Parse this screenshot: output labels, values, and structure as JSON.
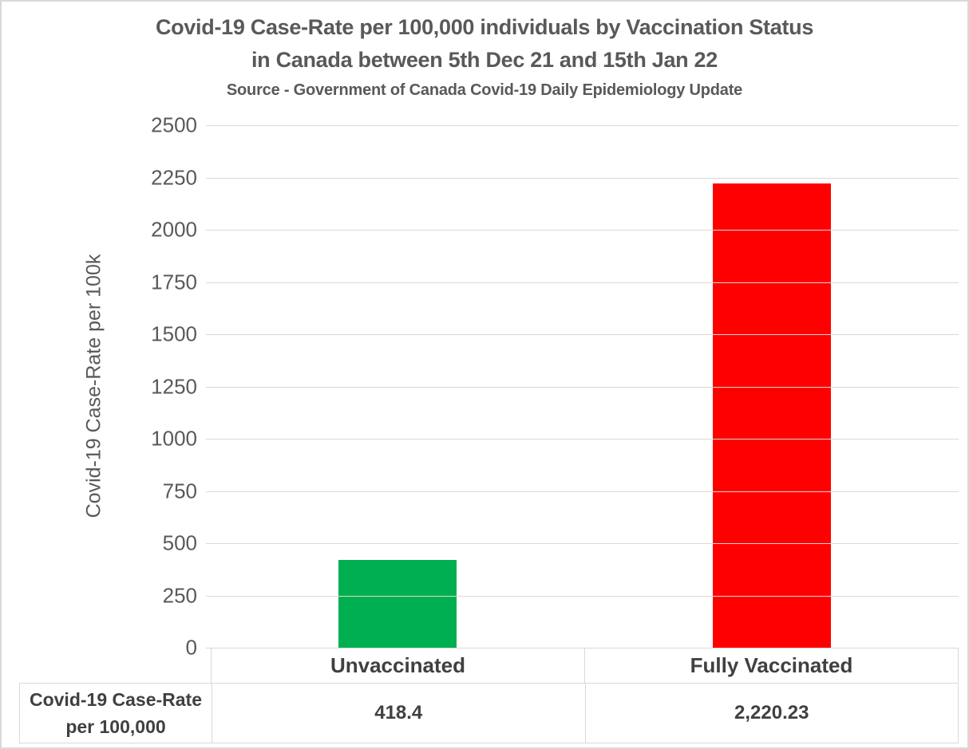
{
  "chart_data": {
    "type": "bar",
    "title_line1": "Covid-19 Case-Rate per 100,000 individuals by Vaccination Status",
    "title_line2": "in Canada between 5th Dec 21 and 15th Jan 22",
    "source_note": "Source - Government of Canada Covid-19 Daily Epidemiology Update",
    "ylabel": "Covid-19 Case-Rate per 100k",
    "categories": [
      "Unvaccinated",
      "Fully Vaccinated"
    ],
    "values": [
      418.4,
      2220.23
    ],
    "value_labels": [
      "418.4",
      "2,220.23"
    ],
    "series_name": "Covid-19 Case-Rate per 100,000",
    "row_header_lines": [
      "Covid-19 Case-Rate",
      "per 100,000"
    ],
    "ylim": [
      0,
      2500
    ],
    "ytick_interval": 250,
    "yticks": [
      2500,
      2250,
      2000,
      1750,
      1500,
      1250,
      1000,
      750,
      500,
      250,
      0
    ],
    "grid": true,
    "legend": "none",
    "data_table_shown": true,
    "bar_colors": [
      "#00B050",
      "#FF0000"
    ]
  },
  "colors": {
    "title_text": "#595959",
    "axis_text": "#595959",
    "table_text": "#404040",
    "gridline": "#D9D9D9",
    "table_border": "#D9D9D9",
    "frame_border": "#D9D9D9",
    "background": "#FFFFFF",
    "bar_unvaccinated": "#00B050",
    "bar_fully_vaccinated": "#FF0000"
  }
}
